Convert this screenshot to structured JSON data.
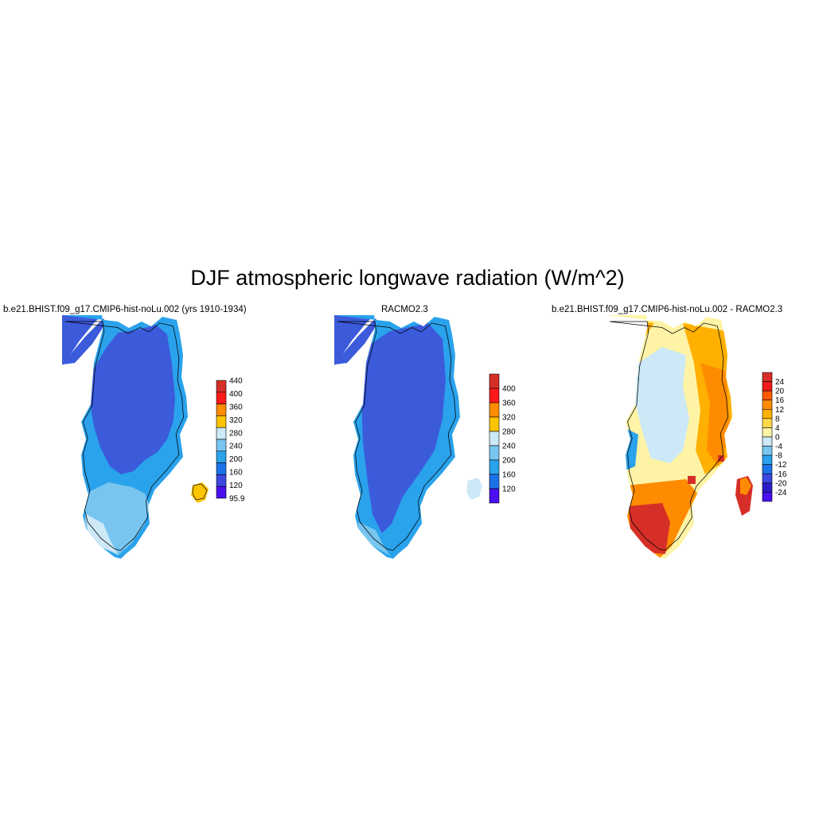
{
  "title": "DJF atmospheric longwave radiation (W/m^2)",
  "panels": [
    {
      "title": "b.e21.BHIST.f09_g17.CMIP6-hist-noLu.002 (yrs 1910-1934)",
      "colorbar": {
        "labels": [
          "440",
          "400",
          "360",
          "320",
          "280",
          "240",
          "200",
          "160",
          "120",
          "95.9"
        ],
        "colors": [
          "#d62f27",
          "#ff1a1a",
          "#ff8c00",
          "#ffc400",
          "#cde8f6",
          "#78c6f0",
          "#2aa2ec",
          "#1c72e8",
          "#3b48e0",
          "#4a10f0"
        ]
      }
    },
    {
      "title": "RACMO2.3",
      "colorbar": {
        "labels": [
          "400",
          "360",
          "320",
          "280",
          "240",
          "200",
          "160",
          "120"
        ],
        "colors": [
          "#d62f27",
          "#ff1a1a",
          "#ff8c00",
          "#ffc400",
          "#cde8f6",
          "#78c6f0",
          "#2aa2ec",
          "#1c72e8",
          "#4a10f0"
        ]
      }
    },
    {
      "title": "b.e21.BHIST.f09_g17.CMIP6-hist-noLu.002 - RACMO2.3",
      "colorbar": {
        "labels": [
          "24",
          "20",
          "16",
          "12",
          "8",
          "4",
          "0",
          "-4",
          "-8",
          "-12",
          "-16",
          "-20",
          "-24"
        ],
        "colors": [
          "#d62f27",
          "#f21b1b",
          "#ff5a00",
          "#ff8c00",
          "#ffb000",
          "#ffd84a",
          "#fff3a6",
          "#cde8f6",
          "#78c6f0",
          "#2aa2ec",
          "#1c72e8",
          "#3b48e0",
          "#2a1ec8",
          "#4a10f0"
        ]
      }
    }
  ]
}
